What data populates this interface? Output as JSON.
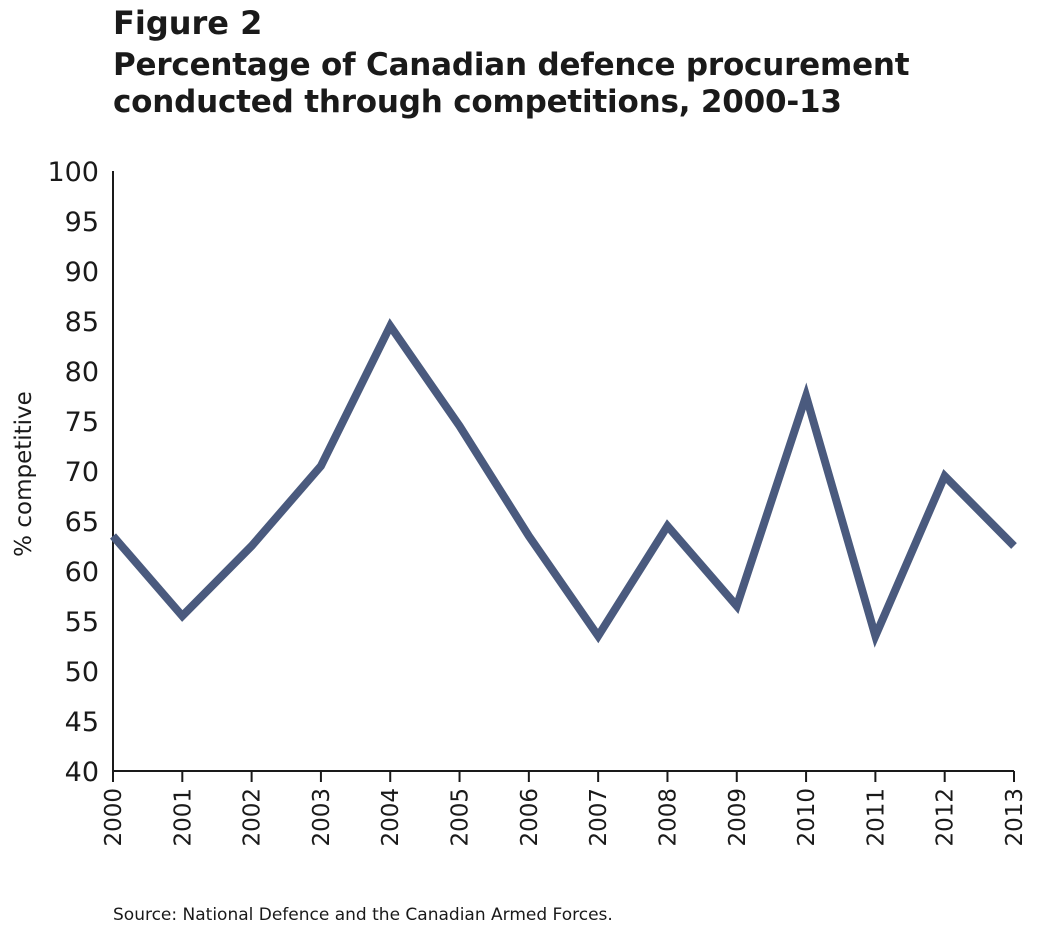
{
  "figure": {
    "label": "Figure 2",
    "title": "Percentage of Canadian defence procurement conducted through competitions, 2000-13",
    "source": "Source: National Defence and the Canadian Armed Forces."
  },
  "chart_data": {
    "type": "line",
    "ylabel": "% competitive",
    "xlabel": "",
    "ylim": [
      40,
      100
    ],
    "yticks": [
      40,
      45,
      50,
      55,
      60,
      65,
      70,
      75,
      80,
      85,
      90,
      95,
      100
    ],
    "categories": [
      "2000",
      "2001",
      "2002",
      "2003",
      "2004",
      "2005",
      "2006",
      "2007",
      "2008",
      "2009",
      "2010",
      "2011",
      "2012",
      "2013"
    ],
    "series": [
      {
        "values": [
          63.5,
          55.5,
          62.5,
          70.5,
          84.5,
          74.5,
          63.5,
          53.5,
          64.5,
          56.5,
          77.5,
          53.5,
          69.5,
          62.5
        ],
        "color": "#4a5a7e"
      }
    ],
    "grid": false,
    "legend": "none",
    "axis_color": "#1a1a1a"
  }
}
